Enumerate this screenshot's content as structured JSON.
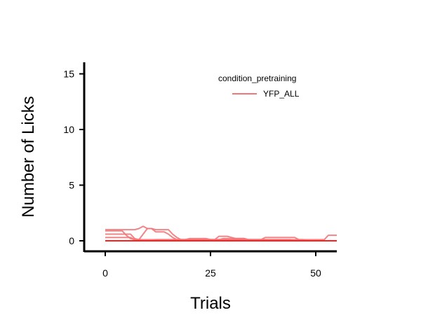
{
  "chart_data": {
    "type": "line",
    "title": "",
    "xlabel": "Trials",
    "ylabel": "Number of Licks",
    "xlim": [
      -5,
      55
    ],
    "ylim": [
      -1,
      16
    ],
    "xticks": [
      0,
      25,
      50
    ],
    "yticks": [
      0,
      5,
      10,
      15
    ],
    "legend": {
      "title": "condition_pretraining",
      "entries": [
        "YFP_ALL"
      ],
      "position": "top-right"
    },
    "line_color": "#f0787a",
    "series": [
      {
        "name": "YFP_ALL",
        "x": [
          0,
          1,
          2,
          3,
          4,
          5,
          6,
          7,
          8,
          9,
          10,
          11,
          12,
          13,
          14,
          15,
          16,
          17,
          18,
          19,
          20,
          21,
          22,
          23,
          24,
          25,
          26,
          27,
          28,
          29,
          30,
          31,
          32,
          33,
          34,
          35,
          36,
          37,
          38,
          39,
          40,
          41,
          42,
          43,
          44,
          45,
          46,
          47,
          48,
          49,
          50,
          51,
          52,
          53,
          54,
          55
        ],
        "y": [
          1,
          1,
          1,
          1,
          1,
          1,
          1,
          1,
          1.1,
          1.3,
          1.1,
          1.1,
          1.0,
          1.0,
          1.0,
          1.0,
          0.6,
          0.3,
          0.1,
          0.1,
          0.1,
          0.1,
          0.1,
          0.1,
          0.1,
          0.1,
          0.1,
          0.1,
          0.1,
          0.1,
          0.1,
          0.1,
          0.1,
          0.1,
          0.1,
          0.1,
          0.1,
          0.1,
          0.1,
          0.1,
          0.1,
          0.1,
          0.1,
          0.1,
          0.1,
          0,
          0,
          0,
          0,
          0,
          0,
          0,
          0,
          0,
          0,
          0
        ]
      },
      {
        "name": "",
        "x": [
          0,
          1,
          2,
          3,
          4,
          5,
          6,
          7,
          8,
          9,
          10,
          11,
          12,
          13,
          14,
          15,
          16,
          17,
          18,
          19,
          20,
          21,
          22,
          23,
          24,
          25,
          26,
          27,
          28,
          29,
          30,
          31,
          32,
          33,
          34,
          35,
          36,
          37,
          38,
          39,
          40,
          41,
          42,
          43,
          44,
          45,
          46,
          47,
          48,
          49,
          50,
          51,
          52,
          53,
          54,
          55
        ],
        "y": [
          0.9,
          0.9,
          0.9,
          0.9,
          0.9,
          0.5,
          0.2,
          0.1,
          0.1,
          0.1,
          0.1,
          0.1,
          0.1,
          0.1,
          0.1,
          0.1,
          0.1,
          0.1,
          0.1,
          0.1,
          0.1,
          0.1,
          0.1,
          0.1,
          0.1,
          0.1,
          0.1,
          0.4,
          0.4,
          0.4,
          0.3,
          0.2,
          0.2,
          0.2,
          0.1,
          0.1,
          0.1,
          0.1,
          0.3,
          0.3,
          0.3,
          0.3,
          0.3,
          0.3,
          0.3,
          0.3,
          0.1,
          0.1,
          0.1,
          0.1,
          0.1,
          0.1,
          0.1,
          0.5,
          0.5,
          0.5
        ]
      },
      {
        "name": "",
        "x": [
          0,
          1,
          2,
          3,
          4,
          5,
          6,
          7,
          8,
          9,
          10,
          11,
          12,
          13,
          14,
          15,
          16,
          17,
          18,
          19,
          20,
          21,
          22,
          23,
          24,
          25,
          26,
          27,
          28,
          29,
          30,
          31,
          32,
          33,
          34,
          35,
          36,
          37,
          38,
          39,
          40,
          41,
          42,
          43,
          44,
          45,
          46,
          47,
          48,
          49,
          50,
          51,
          52,
          53,
          54,
          55
        ],
        "y": [
          0.6,
          0.6,
          0.6,
          0.6,
          0.6,
          0.6,
          0.6,
          0.2,
          0.1,
          0.6,
          1.1,
          1.1,
          0.8,
          0.8,
          0.8,
          0.6,
          0.3,
          0.1,
          0.1,
          0.1,
          0.2,
          0.2,
          0.2,
          0.2,
          0.2,
          0.1,
          0.1,
          0.1,
          0.2,
          0.2,
          0.2,
          0.2,
          0.2,
          0.2,
          0.1,
          0.1,
          0.1,
          0.1,
          0.1,
          0.1,
          0.1,
          0.1,
          0.1,
          0.1,
          0.1,
          0.1,
          0.1,
          0.1,
          0,
          0,
          0,
          0,
          0,
          0,
          0,
          0
        ]
      },
      {
        "name": "",
        "x": [
          0,
          1,
          2,
          3,
          4,
          5,
          6,
          7,
          8,
          9,
          10,
          11,
          12,
          13,
          14,
          15,
          16,
          17,
          18,
          19,
          20,
          21,
          22,
          23,
          24,
          25,
          26,
          27,
          28,
          29,
          30,
          31,
          32,
          33,
          34,
          35,
          36,
          37,
          38,
          39,
          40,
          41,
          42,
          43,
          44,
          45,
          46,
          47,
          48,
          49,
          50,
          51,
          52,
          53,
          54,
          55
        ],
        "y": [
          0.3,
          0.3,
          0.3,
          0.3,
          0.3,
          0.3,
          0.3,
          0.1,
          0,
          0,
          0,
          0,
          0.1,
          0.1,
          0.1,
          0.1,
          0.1,
          0.1,
          0.1,
          0.1,
          0.1,
          0.1,
          0.1,
          0.1,
          0.1,
          0.1,
          0.1,
          0.1,
          0.1,
          0.1,
          0.1,
          0.1,
          0.1,
          0.1,
          0.1,
          0.1,
          0.1,
          0.1,
          0.1,
          0.1,
          0.1,
          0.1,
          0.1,
          0.1,
          0.1,
          0,
          0,
          0,
          0,
          0,
          0,
          0,
          0,
          0,
          0,
          0
        ]
      },
      {
        "name": "",
        "x": [
          0,
          1,
          2,
          3,
          4,
          5,
          6,
          7,
          8,
          9,
          10,
          11,
          12,
          13,
          14,
          15,
          16,
          17,
          18,
          19,
          20,
          21,
          22,
          23,
          24,
          25,
          26,
          27,
          28,
          29,
          30,
          31,
          32,
          33,
          34,
          35,
          36,
          37,
          38,
          39,
          40,
          41,
          42,
          43,
          44,
          45,
          46,
          47,
          48,
          49,
          50,
          51,
          52,
          53,
          54,
          55
        ],
        "y": [
          0,
          0,
          0,
          0,
          0,
          0,
          0,
          0,
          0,
          0,
          0,
          0,
          0,
          0,
          0,
          0,
          0,
          0,
          0,
          0,
          0,
          0,
          0,
          0,
          0,
          0,
          0,
          0,
          0,
          0,
          0,
          0,
          0,
          0,
          0,
          0,
          0,
          0,
          0,
          0,
          0,
          0,
          0,
          0,
          0,
          0,
          0,
          0,
          0,
          0,
          0,
          0,
          0,
          0,
          0,
          0
        ]
      }
    ]
  }
}
